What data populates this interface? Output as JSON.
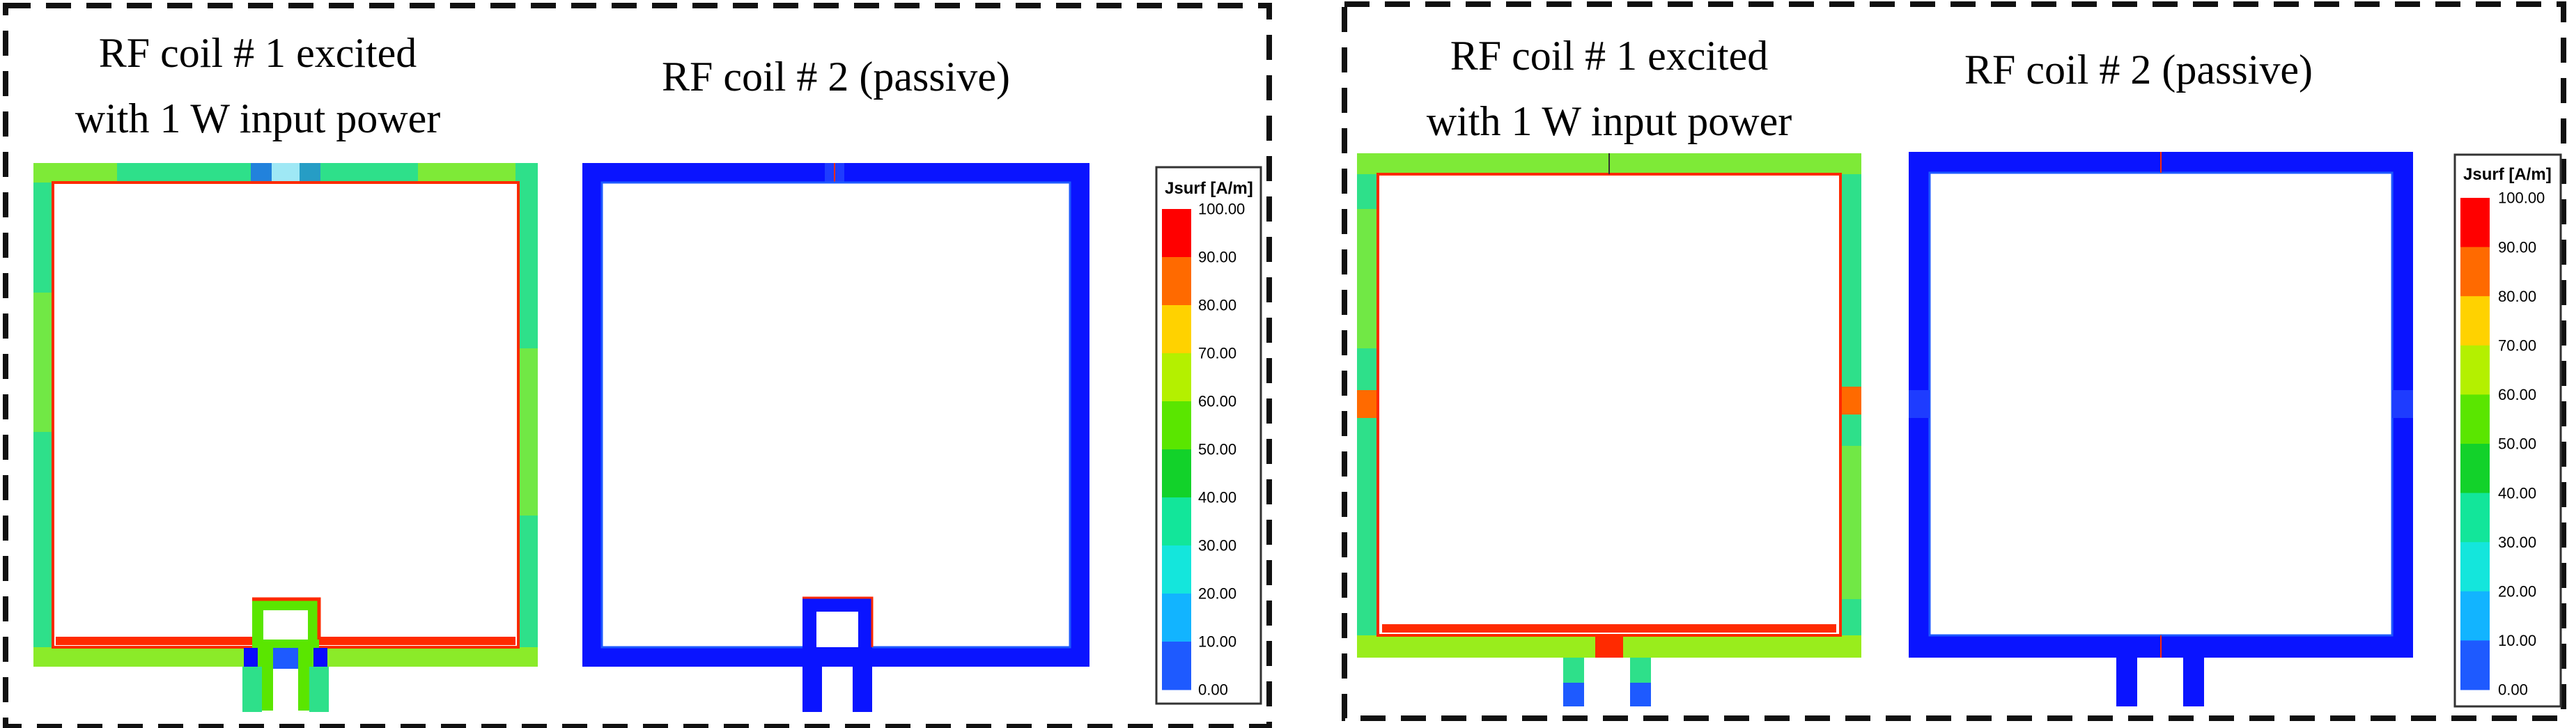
{
  "panels": [
    {
      "id": "left",
      "coil1_label_line1": "RF coil # 1 excited",
      "coil1_label_line2": "with 1 W input power",
      "coil2_label": "RF coil # 2 (passive)"
    },
    {
      "id": "right",
      "coil1_label_line1": "RF coil # 1 excited",
      "coil1_label_line2": "with 1 W input power",
      "coil2_label": "RF coil # 2 (passive)"
    }
  ],
  "colorbar": {
    "title": "Jsurf [A/m]",
    "ticks": [
      "100.00",
      "90.00",
      "80.00",
      "70.00",
      "60.00",
      "50.00",
      "40.00",
      "30.00",
      "20.00",
      "10.00",
      "0.00"
    ],
    "colors": [
      "#ff0000",
      "#ff6a00",
      "#ffd200",
      "#b4f000",
      "#5ae600",
      "#12d22a",
      "#12e69a",
      "#14e6dc",
      "#12b4ff",
      "#1e5aff",
      "#0a0aff"
    ]
  },
  "field_colors": {
    "coil1_base": "#2ee08a",
    "coil1_hot": "#ffd200",
    "coil1_edge": "#ff2a00",
    "coil1_low": "#1e5aff",
    "coil2_base": "#0a14ff"
  }
}
